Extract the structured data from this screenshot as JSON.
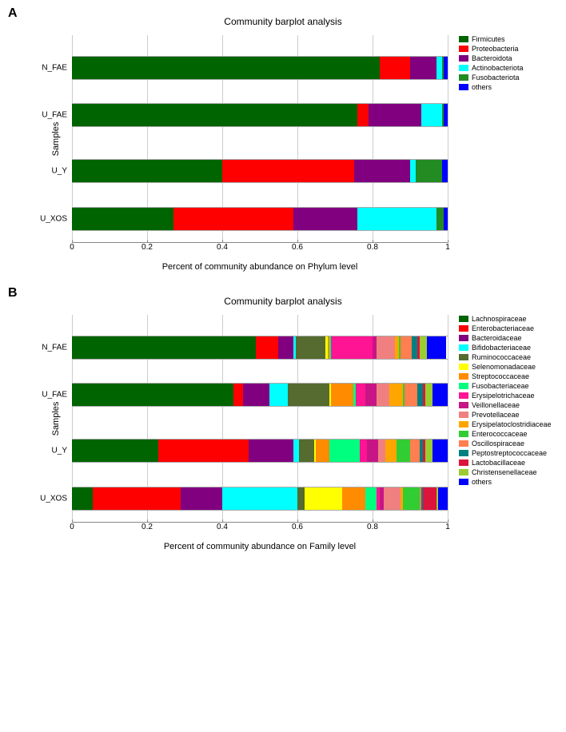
{
  "panels": [
    {
      "label": "A",
      "title": "Community barplot analysis",
      "ylabel": "Samples",
      "xlabel": "Percent of community abundance on Phylum level",
      "xlim": [
        0,
        1
      ],
      "xtick_step": 0.2,
      "xticks": [
        "0",
        "0.2",
        "0.4",
        "0.6",
        "0.8",
        "1"
      ],
      "categories": [
        "N_FAE",
        "U_FAE",
        "U_Y",
        "U_XOS"
      ],
      "bar_positions_pct": [
        10,
        33,
        60,
        83
      ],
      "legend": [
        {
          "name": "Firmicutes",
          "color": "#006400"
        },
        {
          "name": "Proteobacteria",
          "color": "#ff0000"
        },
        {
          "name": "Bacteroidota",
          "color": "#800080"
        },
        {
          "name": "Actinobacteriota",
          "color": "#00ffff"
        },
        {
          "name": "Fusobacteriota",
          "color": "#228b22"
        },
        {
          "name": "others",
          "color": "#0000ff"
        }
      ],
      "rows": [
        {
          "segments": [
            {
              "color": "#006400",
              "w": 0.82
            },
            {
              "color": "#ff0000",
              "w": 0.08
            },
            {
              "color": "#800080",
              "w": 0.07
            },
            {
              "color": "#00ffff",
              "w": 0.015
            },
            {
              "color": "#228b22",
              "w": 0.005
            },
            {
              "color": "#0000ff",
              "w": 0.01
            }
          ]
        },
        {
          "segments": [
            {
              "color": "#006400",
              "w": 0.76
            },
            {
              "color": "#ff0000",
              "w": 0.03
            },
            {
              "color": "#800080",
              "w": 0.14
            },
            {
              "color": "#00ffff",
              "w": 0.055
            },
            {
              "color": "#228b22",
              "w": 0.005
            },
            {
              "color": "#0000ff",
              "w": 0.01
            }
          ]
        },
        {
          "segments": [
            {
              "color": "#006400",
              "w": 0.4
            },
            {
              "color": "#ff0000",
              "w": 0.35
            },
            {
              "color": "#800080",
              "w": 0.15
            },
            {
              "color": "#00ffff",
              "w": 0.015
            },
            {
              "color": "#228b22",
              "w": 0.07
            },
            {
              "color": "#0000ff",
              "w": 0.015
            }
          ]
        },
        {
          "segments": [
            {
              "color": "#006400",
              "w": 0.27
            },
            {
              "color": "#ff0000",
              "w": 0.32
            },
            {
              "color": "#800080",
              "w": 0.17
            },
            {
              "color": "#00ffff",
              "w": 0.21
            },
            {
              "color": "#228b22",
              "w": 0.02
            },
            {
              "color": "#0000ff",
              "w": 0.01
            }
          ]
        }
      ]
    },
    {
      "label": "B",
      "title": "Community barplot analysis",
      "ylabel": "Samples",
      "xlabel": "Percent of community abundance on Family level",
      "xlim": [
        0,
        1
      ],
      "xtick_step": 0.2,
      "xticks": [
        "0",
        "0.2",
        "0.4",
        "0.6",
        "0.8",
        "1"
      ],
      "categories": [
        "N_FAE",
        "U_FAE",
        "U_Y",
        "U_XOS"
      ],
      "bar_positions_pct": [
        10,
        33,
        60,
        83
      ],
      "legend": [
        {
          "name": "Lachnospiraceae",
          "color": "#006400"
        },
        {
          "name": "Enterobacteriaceae",
          "color": "#ff0000"
        },
        {
          "name": "Bacteroidaceae",
          "color": "#800080"
        },
        {
          "name": "Bifidobacteriaceae",
          "color": "#00ffff"
        },
        {
          "name": "Ruminococcaceae",
          "color": "#556b2f"
        },
        {
          "name": "Selenomonadaceae",
          "color": "#ffff00"
        },
        {
          "name": "Streptococcaceae",
          "color": "#ff8c00"
        },
        {
          "name": "Fusobacteriaceae",
          "color": "#00ff7f"
        },
        {
          "name": "Erysipelotrichaceae",
          "color": "#ff1493"
        },
        {
          "name": "Veillonellaceae",
          "color": "#c71585"
        },
        {
          "name": "Prevotellaceae",
          "color": "#f08080"
        },
        {
          "name": "Erysipelatoclostridiaceae",
          "color": "#ffa500"
        },
        {
          "name": "Enterococcaceae",
          "color": "#32cd32"
        },
        {
          "name": "Oscillospiraceae",
          "color": "#ff7f50"
        },
        {
          "name": "Peptostreptococcaceae",
          "color": "#008080"
        },
        {
          "name": "Lactobacillaceae",
          "color": "#dc143c"
        },
        {
          "name": "Christensenellaceae",
          "color": "#9acd32"
        },
        {
          "name": "others",
          "color": "#0000ff"
        }
      ],
      "rows": [
        {
          "segments": [
            {
              "color": "#006400",
              "w": 0.49
            },
            {
              "color": "#ff0000",
              "w": 0.06
            },
            {
              "color": "#800080",
              "w": 0.04
            },
            {
              "color": "#00ffff",
              "w": 0.005
            },
            {
              "color": "#556b2f",
              "w": 0.08
            },
            {
              "color": "#ffff00",
              "w": 0.005
            },
            {
              "color": "#ff8c00",
              "w": 0.005
            },
            {
              "color": "#00ff7f",
              "w": 0.005
            },
            {
              "color": "#ff1493",
              "w": 0.11
            },
            {
              "color": "#c71585",
              "w": 0.01
            },
            {
              "color": "#f08080",
              "w": 0.05
            },
            {
              "color": "#ffa500",
              "w": 0.01
            },
            {
              "color": "#32cd32",
              "w": 0.005
            },
            {
              "color": "#ff7f50",
              "w": 0.03
            },
            {
              "color": "#008080",
              "w": 0.015
            },
            {
              "color": "#dc143c",
              "w": 0.005
            },
            {
              "color": "#9acd32",
              "w": 0.02
            },
            {
              "color": "#0000ff",
              "w": 0.05
            }
          ]
        },
        {
          "segments": [
            {
              "color": "#006400",
              "w": 0.43
            },
            {
              "color": "#ff0000",
              "w": 0.025
            },
            {
              "color": "#800080",
              "w": 0.07
            },
            {
              "color": "#00ffff",
              "w": 0.05
            },
            {
              "color": "#556b2f",
              "w": 0.11
            },
            {
              "color": "#ffff00",
              "w": 0.005
            },
            {
              "color": "#ff8c00",
              "w": 0.06
            },
            {
              "color": "#00ff7f",
              "w": 0.005
            },
            {
              "color": "#ff1493",
              "w": 0.025
            },
            {
              "color": "#c71585",
              "w": 0.03
            },
            {
              "color": "#f08080",
              "w": 0.035
            },
            {
              "color": "#ffa500",
              "w": 0.035
            },
            {
              "color": "#32cd32",
              "w": 0.005
            },
            {
              "color": "#ff7f50",
              "w": 0.035
            },
            {
              "color": "#008080",
              "w": 0.015
            },
            {
              "color": "#dc143c",
              "w": 0.005
            },
            {
              "color": "#9acd32",
              "w": 0.02
            },
            {
              "color": "#0000ff",
              "w": 0.04
            }
          ]
        },
        {
          "segments": [
            {
              "color": "#006400",
              "w": 0.23
            },
            {
              "color": "#ff0000",
              "w": 0.24
            },
            {
              "color": "#800080",
              "w": 0.12
            },
            {
              "color": "#00ffff",
              "w": 0.015
            },
            {
              "color": "#556b2f",
              "w": 0.04
            },
            {
              "color": "#ffff00",
              "w": 0.005
            },
            {
              "color": "#ff8c00",
              "w": 0.035
            },
            {
              "color": "#00ff7f",
              "w": 0.08
            },
            {
              "color": "#ff1493",
              "w": 0.02
            },
            {
              "color": "#c71585",
              "w": 0.03
            },
            {
              "color": "#f08080",
              "w": 0.02
            },
            {
              "color": "#ffa500",
              "w": 0.03
            },
            {
              "color": "#32cd32",
              "w": 0.035
            },
            {
              "color": "#ff7f50",
              "w": 0.025
            },
            {
              "color": "#008080",
              "w": 0.01
            },
            {
              "color": "#dc143c",
              "w": 0.005
            },
            {
              "color": "#9acd32",
              "w": 0.02
            },
            {
              "color": "#0000ff",
              "w": 0.04
            }
          ]
        },
        {
          "segments": [
            {
              "color": "#006400",
              "w": 0.055
            },
            {
              "color": "#ff0000",
              "w": 0.235
            },
            {
              "color": "#800080",
              "w": 0.11
            },
            {
              "color": "#00ffff",
              "w": 0.2
            },
            {
              "color": "#556b2f",
              "w": 0.02
            },
            {
              "color": "#ffff00",
              "w": 0.1
            },
            {
              "color": "#ff8c00",
              "w": 0.06
            },
            {
              "color": "#00ff7f",
              "w": 0.03
            },
            {
              "color": "#ff1493",
              "w": 0.01
            },
            {
              "color": "#c71585",
              "w": 0.01
            },
            {
              "color": "#f08080",
              "w": 0.045
            },
            {
              "color": "#ffa500",
              "w": 0.005
            },
            {
              "color": "#32cd32",
              "w": 0.045
            },
            {
              "color": "#ff7f50",
              "w": 0.005
            },
            {
              "color": "#008080",
              "w": 0.005
            },
            {
              "color": "#dc143c",
              "w": 0.035
            },
            {
              "color": "#9acd32",
              "w": 0.005
            },
            {
              "color": "#0000ff",
              "w": 0.025
            }
          ]
        }
      ]
    }
  ]
}
